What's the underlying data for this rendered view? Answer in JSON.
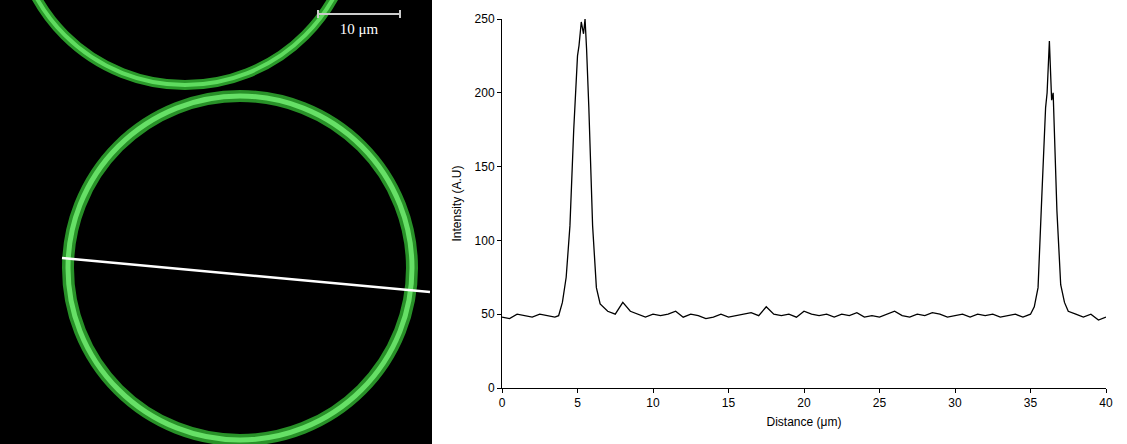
{
  "image": {
    "scale_bar": "10 μm"
  },
  "chart_data": {
    "type": "line",
    "xlabel": "Distance (μm)",
    "ylabel": "Intensity (A.U)",
    "x": [
      0,
      0.5,
      1,
      1.5,
      2,
      2.5,
      3,
      3.5,
      3.75,
      4,
      4.25,
      4.5,
      4.75,
      5,
      5.1,
      5.25,
      5.4,
      5.5,
      5.6,
      5.75,
      6,
      6.25,
      6.5,
      7,
      7.5,
      8,
      8.5,
      9,
      9.5,
      10,
      10.5,
      11,
      11.5,
      12,
      12.5,
      13,
      13.5,
      14,
      14.5,
      15,
      15.5,
      16,
      16.5,
      17,
      17.5,
      18,
      18.5,
      19,
      19.5,
      20,
      20.5,
      21,
      21.5,
      22,
      22.5,
      23,
      23.5,
      24,
      24.5,
      25,
      25.5,
      26,
      26.5,
      27,
      27.5,
      28,
      28.5,
      29,
      29.5,
      30,
      30.5,
      31,
      31.5,
      32,
      32.5,
      33,
      33.5,
      34,
      34.5,
      35,
      35.25,
      35.5,
      35.75,
      36,
      36.1,
      36.25,
      36.4,
      36.5,
      36.75,
      37,
      37.25,
      37.5,
      38,
      38.5,
      39,
      39.5,
      40
    ],
    "values": [
      48,
      47,
      50,
      49,
      48,
      50,
      49,
      48,
      49,
      58,
      75,
      110,
      175,
      225,
      232,
      248,
      240,
      250,
      230,
      190,
      110,
      68,
      57,
      52,
      50,
      58,
      52,
      50,
      48,
      50,
      49,
      50,
      52,
      48,
      50,
      49,
      47,
      48,
      50,
      48,
      49,
      50,
      51,
      49,
      55,
      50,
      49,
      50,
      48,
      52,
      50,
      49,
      50,
      48,
      50,
      49,
      51,
      48,
      49,
      48,
      50,
      52,
      49,
      48,
      50,
      49,
      51,
      50,
      48,
      49,
      50,
      48,
      50,
      49,
      50,
      48,
      49,
      50,
      48,
      50,
      55,
      68,
      130,
      190,
      200,
      235,
      195,
      200,
      120,
      70,
      58,
      52,
      50,
      48,
      50,
      46,
      48
    ],
    "color": "#000000",
    "line_style": "solid",
    "xlim": [
      0,
      40
    ],
    "xticks": [
      0,
      5,
      10,
      15,
      20,
      25,
      30,
      35,
      40
    ],
    "ylim": [
      0,
      250
    ],
    "yticks": [
      0,
      50,
      100,
      150,
      200,
      250
    ],
    "grid": false
  }
}
